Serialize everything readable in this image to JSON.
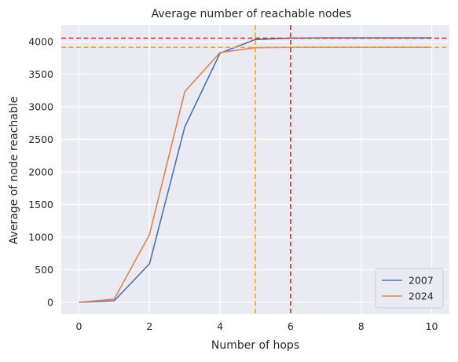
{
  "chart_data": {
    "type": "line",
    "title": "Average number of reachable nodes",
    "xlabel": "Number of hops",
    "ylabel": "Average of node reachable",
    "xlim": [
      -0.5,
      10.5
    ],
    "ylim": [
      -180,
      4250
    ],
    "xticks": [
      0,
      2,
      4,
      6,
      8,
      10
    ],
    "yticks": [
      0,
      500,
      1000,
      1500,
      2000,
      2500,
      3000,
      3500,
      4000
    ],
    "grid": true,
    "legend_position": "lower-right",
    "x": [
      0,
      1,
      2,
      3,
      4,
      5,
      6,
      7,
      8,
      9,
      10
    ],
    "series": [
      {
        "name": "2007",
        "color": "#4c72b0",
        "values": [
          0,
          25,
          590,
          2690,
          3820,
          4030,
          4050,
          4055,
          4055,
          4055,
          4055
        ]
      },
      {
        "name": "2024",
        "color": "#dd8452",
        "values": [
          0,
          50,
          1040,
          3230,
          3830,
          3905,
          3910,
          3910,
          3910,
          3910,
          3910
        ]
      }
    ],
    "reference_lines": [
      {
        "orientation": "horizontal",
        "value": 4050,
        "color": "#d62728",
        "style": "dashed"
      },
      {
        "orientation": "horizontal",
        "value": 3910,
        "color": "#ffa500",
        "style": "dashed"
      },
      {
        "orientation": "vertical",
        "value": 6,
        "color": "#d62728",
        "style": "dashed"
      },
      {
        "orientation": "vertical",
        "value": 5,
        "color": "#ffa500",
        "style": "dashed"
      }
    ],
    "colors": {
      "background": "#eaeaf2",
      "grid": "#ffffff"
    }
  }
}
